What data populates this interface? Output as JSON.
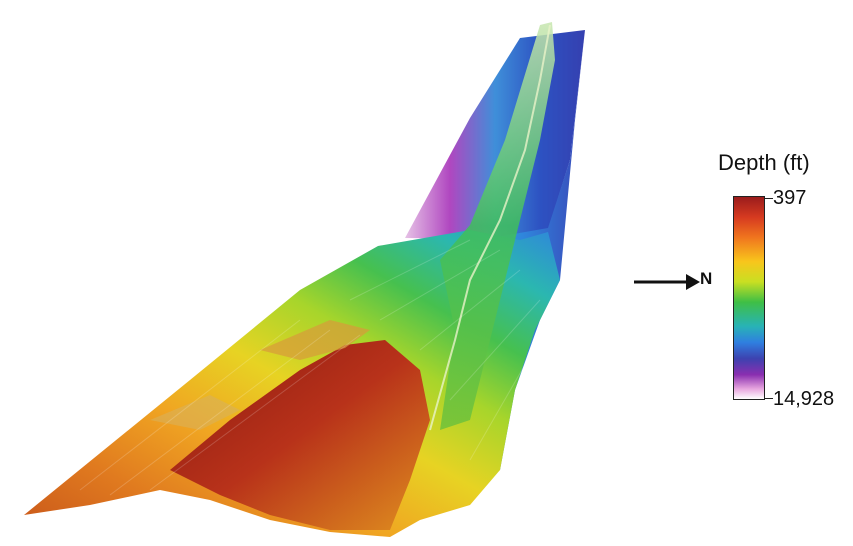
{
  "map": {
    "terrain": "bathymetry-relief",
    "colormap": [
      "#9b1c1c",
      "#d63a20",
      "#f0751e",
      "#f8c61c",
      "#c9df22",
      "#3fbf45",
      "#28b3b6",
      "#2f7fe0",
      "#3d42b0",
      "#8a2fb0",
      "#e8a6df",
      "#ffffff"
    ]
  },
  "legend": {
    "title": "Depth (ft)",
    "max_label": "397",
    "min_label": "14,928"
  },
  "north": {
    "label": "N",
    "icon": "arrow-right-icon"
  }
}
